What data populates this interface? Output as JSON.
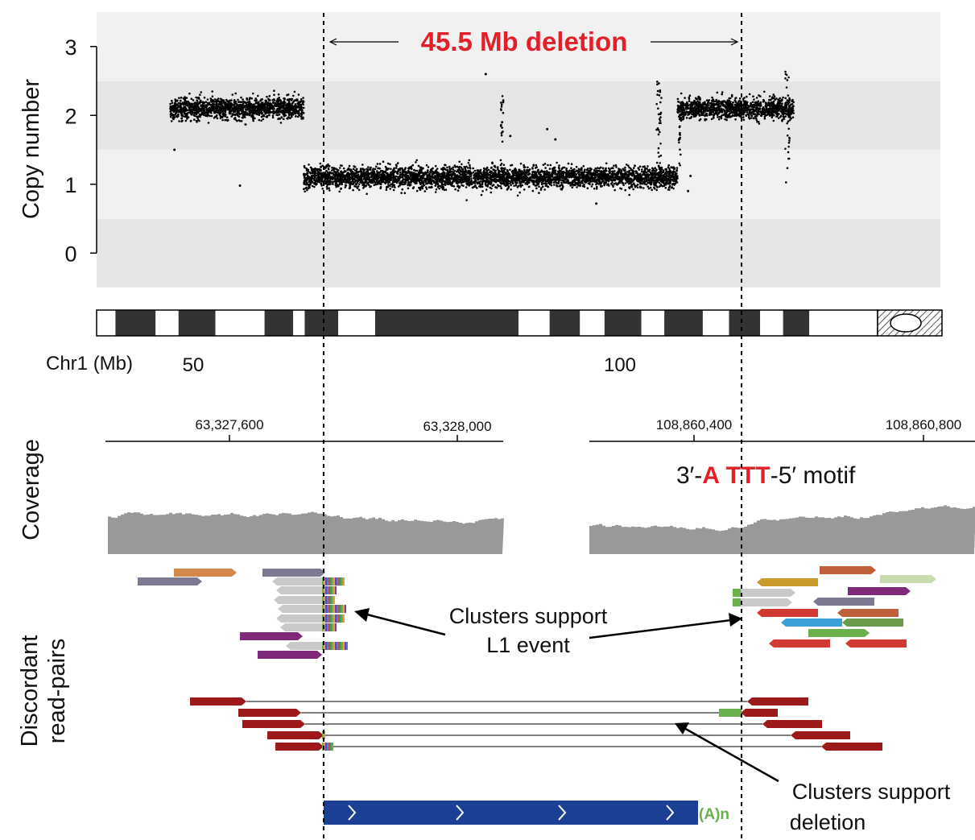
{
  "figure": {
    "deletion_label": "45.5 Mb deletion",
    "motif": {
      "prefix": "3′-",
      "base1": "A",
      "base2": "TTT",
      "suffix": "-5′ motif"
    },
    "cluster_l1_label": [
      "Clusters support",
      "L1 event"
    ],
    "cluster_deletion_label": [
      "Clusters support",
      "deletion"
    ],
    "polyA_label": "(A)n",
    "colors": {
      "highlight": "#e3202a",
      "l1_element": "#1c3f96",
      "polyA": "#6ab04c",
      "deletion_read": "#9c1a1a",
      "coverage": "#999999"
    }
  },
  "chart_data": [
    {
      "type": "scatter",
      "ylabel": "Copy number",
      "ylim": [
        -0.5,
        3.5
      ],
      "yticks": [
        "0",
        "1",
        "2",
        "3"
      ],
      "xlabel": "Chr1 (Mb)",
      "xticks": [
        "50",
        "100"
      ],
      "xlim": [
        38,
        141
      ],
      "deletion_mb": [
        63.3,
        108.9
      ],
      "segments": [
        {
          "start": 47,
          "end": 63.3,
          "copy_number": 2.1
        },
        {
          "start": 63.3,
          "end": 108.9,
          "copy_number": 1.1
        },
        {
          "start": 108.9,
          "end": 120.7,
          "copy_number": 2.1
        },
        {
          "start": 120.7,
          "end": 123.1,
          "copy_number": 2.1
        }
      ],
      "outliers": [
        [
          55.5,
          0.98
        ],
        [
          47.5,
          1.5
        ],
        [
          85.5,
          2.6
        ],
        [
          87.5,
          1.9
        ],
        [
          93.0,
          1.8
        ],
        [
          99.0,
          0.72
        ],
        [
          110.2,
          0.9
        ],
        [
          110.5,
          1.12
        ],
        [
          88.5,
          1.7
        ],
        [
          94.0,
          1.65
        ]
      ]
    },
    {
      "type": "area",
      "ylabel": "Coverage",
      "panels": [
        {
          "ticks": [
            "63,327,600",
            "63,328,000"
          ]
        },
        {
          "ticks": [
            "108,860,400",
            "108,860,800"
          ]
        }
      ]
    }
  ],
  "reads": {
    "ylabel": [
      "Discordant",
      "read-pairs"
    ]
  }
}
